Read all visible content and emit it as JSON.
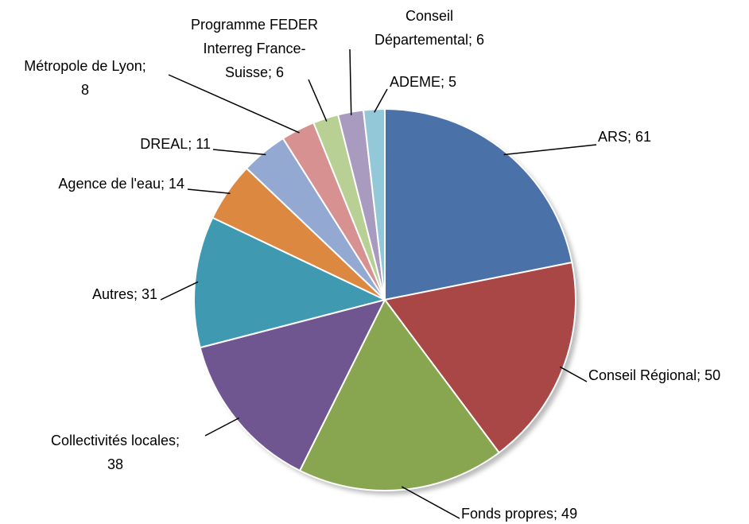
{
  "chart_data": {
    "type": "pie",
    "values": [
      61,
      50,
      49,
      38,
      31,
      14,
      11,
      8,
      6,
      6,
      5
    ],
    "value_labels": [
      [
        "ARS; 61"
      ],
      [
        "Conseil Régional; 50"
      ],
      [
        "Fonds propres; 49"
      ],
      [
        "Collectivités locales;",
        "38"
      ],
      [
        "Autres; 31"
      ],
      [
        "Agence de l'eau; 14"
      ],
      [
        "DREAL; 11"
      ],
      [
        "Métropole de Lyon;",
        "8"
      ],
      [
        "Programme FEDER",
        "Interreg France-",
        "Suisse; 6"
      ],
      [
        "Conseil",
        "Départemental; 6"
      ],
      [
        "ADEME; 5"
      ]
    ],
    "colors": [
      "#4a72a8",
      "#a84745",
      "#88a64f",
      "#6f5690",
      "#3f99b0",
      "#dc8840",
      "#93a9d2",
      "#d69190",
      "#b9d095",
      "#a89bbf",
      "#93c8d8"
    ]
  }
}
